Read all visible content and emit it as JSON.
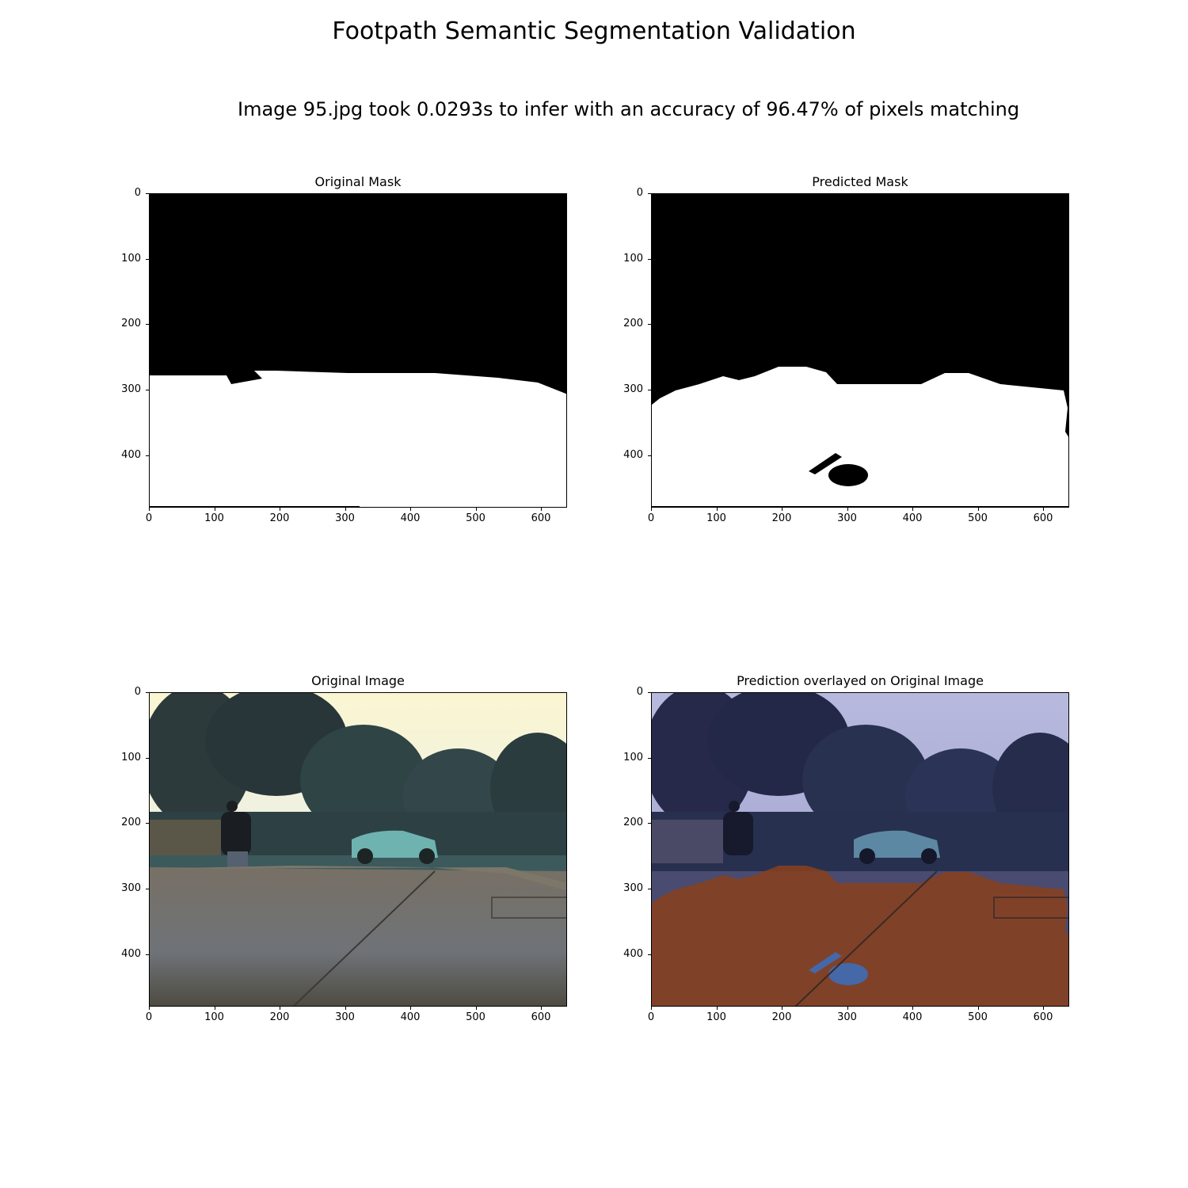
{
  "figure": {
    "title": "Footpath Semantic Segmentation Validation",
    "subtitle": "Image 95.jpg took 0.0293s to infer with an accuracy of 96.47% of pixels matching"
  },
  "panels": [
    {
      "title": "Original Mask"
    },
    {
      "title": "Predicted Mask"
    },
    {
      "title": "Original Image"
    },
    {
      "title": "Prediction overlayed on Original Image"
    }
  ],
  "axes": {
    "x_ticks": [
      "0",
      "100",
      "200",
      "300",
      "400",
      "500",
      "600"
    ],
    "y_ticks": [
      "0",
      "100",
      "200",
      "300",
      "400"
    ],
    "x_range": [
      0,
      640
    ],
    "y_range": [
      0,
      480
    ]
  },
  "colors": {
    "mask_background": "#000000",
    "mask_foreground": "#ffffff",
    "overlay_footpath": "#8a3f1c",
    "overlay_background": "#3a3f7a",
    "sky": "#f6f4d8",
    "road": "#6e6c65"
  }
}
